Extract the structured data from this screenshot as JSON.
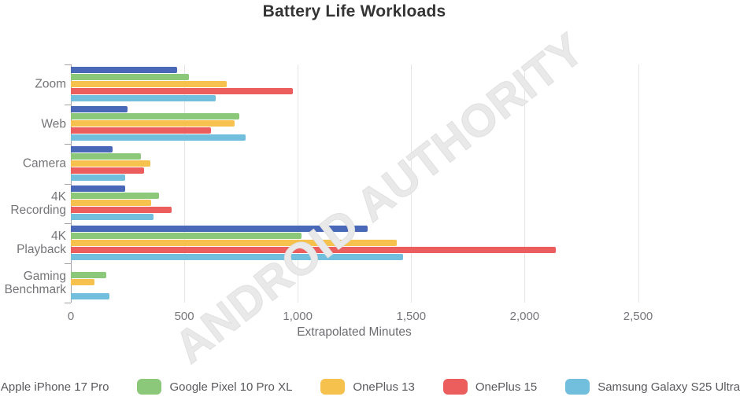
{
  "title": "Battery Life Workloads",
  "watermark_text": "ANDROID AUTHORITY",
  "chart_data": {
    "type": "bar",
    "orientation": "horizontal",
    "title": "Battery Life Workloads",
    "xlabel": "Extrapolated Minutes",
    "unit": "minutes",
    "grid": true,
    "legend_position": "bottom",
    "xlim": [
      0,
      2650
    ],
    "x_ticks": [
      {
        "value": 0,
        "label": "0"
      },
      {
        "value": 500,
        "label": "500"
      },
      {
        "value": 1000,
        "label": "1,000"
      },
      {
        "value": 1500,
        "label": "1,500"
      },
      {
        "value": 2000,
        "label": "2,000"
      },
      {
        "value": 2500,
        "label": "2,500"
      }
    ],
    "categories": [
      "Zoom",
      "Web",
      "Camera",
      "4K Recording",
      "4K Playback",
      "Gaming Benchmark"
    ],
    "series": [
      {
        "name": "Apple iPhone 17 Pro",
        "color": "#4a68b8",
        "values": [
          470,
          249,
          184,
          241,
          1308,
          null
        ]
      },
      {
        "name": "Google Pixel 10 Pro XL",
        "color": "#8cc879",
        "values": [
          520,
          742,
          309,
          388,
          1018,
          156
        ]
      },
      {
        "name": "OnePlus 13",
        "color": "#f6c14d",
        "values": [
          688,
          721,
          350,
          353,
          1437,
          104
        ]
      },
      {
        "name": "OnePlus 15",
        "color": "#ec5e5e",
        "values": [
          977,
          619,
          324,
          444,
          2138,
          null
        ]
      },
      {
        "name": "Samsung Galaxy S25 Ultra",
        "color": "#71bedd",
        "values": [
          640,
          771,
          239,
          365,
          1464,
          171
        ]
      }
    ],
    "style": {
      "grid_color": "#e4e5e8",
      "axis_color": "#a3a3a8",
      "tick_label_color": "#76767c",
      "category_label_color": "#757579",
      "title_color": "#343434",
      "watermark_color": "#e9e9e9"
    }
  }
}
